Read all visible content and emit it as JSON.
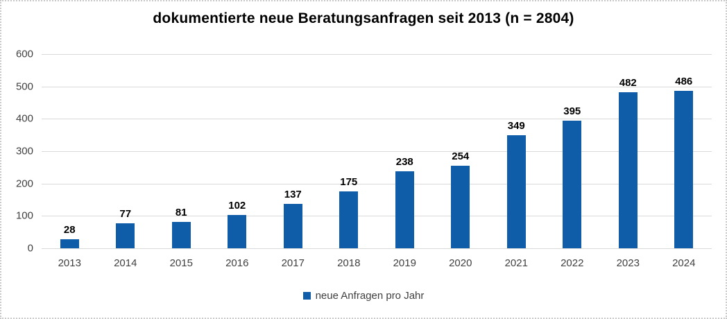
{
  "chart_data": {
    "type": "bar",
    "title": "dokumentierte neue Beratungsanfragen seit 2013 (n = 2804)",
    "categories": [
      "2013",
      "2014",
      "2015",
      "2016",
      "2017",
      "2018",
      "2019",
      "2020",
      "2021",
      "2022",
      "2023",
      "2024"
    ],
    "series": [
      {
        "name": "neue Anfragen pro Jahr",
        "values": [
          28,
          77,
          81,
          102,
          137,
          175,
          238,
          254,
          349,
          395,
          482,
          486
        ]
      }
    ],
    "data_labels_visible": true,
    "xlabel": "",
    "ylabel": "",
    "ylim": [
      0,
      600
    ],
    "yticks": [
      0,
      100,
      200,
      300,
      400,
      500,
      600
    ],
    "grid": true,
    "legend_position": "bottom",
    "colors": {
      "bar": "#0f5ca8",
      "gridline": "#d9d9d9",
      "tick_label": "#404040",
      "data_label": "#000000",
      "title": "#000000",
      "legend_text": "#404040",
      "frame_border": "#c9c9c9",
      "background": "#ffffff"
    }
  },
  "legend": {
    "label": "neue Anfragen pro Jahr"
  }
}
